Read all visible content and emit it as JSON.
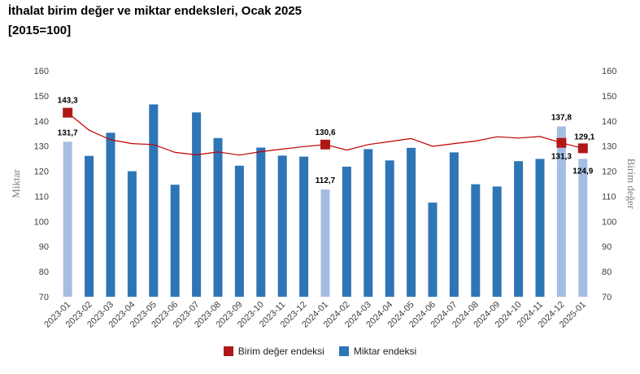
{
  "title": "İthalat birim değer ve miktar endeksleri, Ocak 2025",
  "subtitle": "[2015=100]",
  "colors": {
    "bar": "#2e75b6",
    "bar_highlight": "#a6bde3",
    "line": "#c00000",
    "marker": "#b01818"
  },
  "chart_data": {
    "type": "bar",
    "categories": [
      "2023-01",
      "2023-02",
      "2023-03",
      "2023-04",
      "2023-05",
      "2023-06",
      "2023-07",
      "2023-08",
      "2023-09",
      "2023-10",
      "2023-11",
      "2023-12",
      "2024-01",
      "2024-02",
      "2024-03",
      "2024-04",
      "2024-05",
      "2024-06",
      "2024-07",
      "2024-08",
      "2024-09",
      "2024-10",
      "2024-11",
      "2024-12",
      "2025-01"
    ],
    "series": [
      {
        "name": "Miktar endeksi",
        "type": "bar",
        "axis": "left",
        "values": [
          131.7,
          126.1,
          135.3,
          120.0,
          146.6,
          114.6,
          143.4,
          133.2,
          122.2,
          129.4,
          126.2,
          125.8,
          112.7,
          121.8,
          128.8,
          124.3,
          129.3,
          107.5,
          127.5,
          114.8,
          113.9,
          124.0,
          124.9,
          137.8,
          124.9
        ],
        "highlight_indices": [
          0,
          12,
          23,
          24
        ]
      },
      {
        "name": "Birim değer endeksi",
        "type": "line",
        "axis": "right",
        "values": [
          143.3,
          136.3,
          132.5,
          131.0,
          130.6,
          127.5,
          126.5,
          127.7,
          126.4,
          127.8,
          128.8,
          129.8,
          130.6,
          128.4,
          130.6,
          131.8,
          133.0,
          129.9,
          131.0,
          132.0,
          133.7,
          133.2,
          133.8,
          131.3,
          129.1
        ],
        "marker_indices": [
          0,
          12,
          23,
          24
        ]
      }
    ],
    "bar_labels": [
      {
        "index": 0,
        "text": "131,7"
      },
      {
        "index": 12,
        "text": "112,7"
      },
      {
        "index": 23,
        "text": "137,8"
      },
      {
        "index": 24,
        "text": "124,9"
      }
    ],
    "line_labels": [
      {
        "index": 0,
        "text": "143,3"
      },
      {
        "index": 12,
        "text": "130,6"
      },
      {
        "index": 23,
        "text": "131,3"
      },
      {
        "index": 24,
        "text": "129,1"
      }
    ],
    "ylabel_left": "Miktar",
    "ylabel_right": "Birim değer",
    "ylim": [
      70,
      160
    ],
    "yticks": [
      70,
      80,
      90,
      100,
      110,
      120,
      130,
      140,
      150,
      160
    ],
    "legend": [
      {
        "label": "Birim değer endeksi",
        "color": "#b01818"
      },
      {
        "label": "Miktar endeksi",
        "color": "#2e75b6"
      }
    ],
    "legend_position": "bottom",
    "grid": false
  }
}
